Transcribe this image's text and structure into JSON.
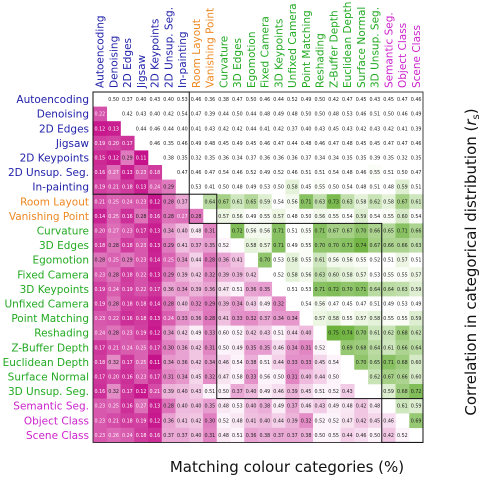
{
  "chart_data": {
    "type": "heatmap",
    "title": "",
    "xlabel": "Matching colour categories (%)",
    "ylabel": "Correlation in categorical distribution (r_s)",
    "ylabel_parts": {
      "main": "Correlation in categorical distribution (",
      "italic": "r",
      "sub": "s",
      "close": ")"
    },
    "tasks": [
      "Autoencoding",
      "Denoising",
      "2D Edges",
      "Jigsaw",
      "2D Keypoints",
      "2D Unsup. Seg.",
      "In-painting",
      "Room Layout",
      "Vanishing Point",
      "Curvature",
      "3D Edges",
      "Egomotion",
      "Fixed Camera",
      "3D Keypoints",
      "Unfixed Camera",
      "Point Matching",
      "Reshading",
      "Z-Buffer Depth",
      "Euclidean Depth",
      "Surface Normal",
      "3D Unsup. Seg.",
      "Semantic Seg.",
      "Object Class",
      "Scene Class"
    ],
    "groups": [
      "2D",
      "2D",
      "2D",
      "2D",
      "2D",
      "2D",
      "2D",
      "Layout",
      "Layout",
      "3D",
      "3D",
      "3D",
      "3D",
      "3D",
      "3D",
      "3D",
      "3D",
      "3D",
      "3D",
      "3D",
      "3D",
      "Semantic",
      "Semantic",
      "Semantic"
    ],
    "group_colors": {
      "2D": "#2222aa",
      "Layout": "#ee8822",
      "3D": "#22aa22",
      "Semantic": "#cc22cc"
    },
    "upper_triangle_metric": "Correlation in categorical distribution (r_s)",
    "lower_triangle_metric": "Matching colour categories (%)",
    "values": [
      [
        null,
        0.5,
        0.37,
        0.4,
        0.43,
        0.4,
        0.53,
        0.46,
        0.36,
        0.38,
        0.47,
        0.5,
        0.46,
        0.44,
        0.52,
        0.49,
        0.5,
        0.42,
        0.47,
        0.45,
        0.43,
        0.45,
        0.47,
        0.46
      ],
      [
        0.22,
        null,
        0.42,
        0.43,
        0.4,
        0.42,
        0.54,
        0.47,
        0.39,
        0.44,
        0.5,
        0.44,
        0.48,
        0.49,
        0.48,
        0.5,
        0.5,
        0.48,
        0.53,
        0.46,
        0.51,
        0.5,
        0.46,
        0.49
      ],
      [
        0.12,
        0.13,
        null,
        0.44,
        0.46,
        0.44,
        0.4,
        0.41,
        0.43,
        0.42,
        0.42,
        0.44,
        0.41,
        0.42,
        0.37,
        0.4,
        0.43,
        0.45,
        0.43,
        0.42,
        0.43,
        0.42,
        0.41,
        0.39
      ],
      [
        0.19,
        0.2,
        0.17,
        null,
        0.46,
        0.35,
        0.46,
        0.49,
        0.48,
        0.45,
        0.49,
        0.45,
        0.46,
        0.47,
        0.44,
        0.48,
        0.46,
        0.47,
        0.48,
        0.45,
        0.45,
        0.47,
        0.47,
        0.46
      ],
      [
        0.15,
        0.12,
        0.29,
        0.11,
        null,
        0.38,
        0.35,
        0.32,
        0.35,
        0.36,
        0.34,
        0.37,
        0.36,
        0.36,
        0.36,
        0.37,
        0.34,
        0.34,
        0.35,
        0.35,
        0.39,
        0.35,
        0.32,
        0.35
      ],
      [
        0.16,
        0.27,
        0.13,
        0.23,
        0.18,
        null,
        0.47,
        0.46,
        0.47,
        0.54,
        0.46,
        0.52,
        0.49,
        0.52,
        0.46,
        0.51,
        0.51,
        0.54,
        0.48,
        0.46,
        0.55,
        0.51,
        0.5,
        0.47
      ],
      [
        0.19,
        0.21,
        0.18,
        0.13,
        0.24,
        0.29,
        null,
        0.53,
        0.41,
        0.5,
        0.48,
        0.49,
        0.53,
        0.5,
        0.58,
        0.45,
        0.55,
        0.5,
        0.54,
        0.48,
        0.51,
        0.48,
        0.59,
        0.51
      ],
      [
        0.21,
        0.25,
        0.24,
        0.23,
        0.12,
        0.28,
        0.37,
        null,
        0.64,
        0.67,
        0.61,
        0.65,
        0.59,
        0.54,
        0.56,
        0.71,
        0.63,
        0.73,
        0.63,
        0.58,
        0.62,
        0.58,
        0.67,
        0.61
      ],
      [
        0.14,
        0.25,
        0.16,
        0.28,
        0.16,
        0.28,
        0.27,
        0.28,
        null,
        0.57,
        0.56,
        0.49,
        0.55,
        0.57,
        0.48,
        0.5,
        0.56,
        0.55,
        0.54,
        0.59,
        0.54,
        0.55,
        0.6,
        0.54
      ],
      [
        0.2,
        0.27,
        0.23,
        0.17,
        0.13,
        0.34,
        0.4,
        0.48,
        0.31,
        null,
        0.72,
        0.56,
        0.56,
        0.71,
        0.51,
        0.55,
        0.71,
        0.67,
        0.67,
        0.7,
        0.66,
        0.65,
        0.71,
        0.66
      ],
      [
        0.18,
        0.28,
        0.18,
        0.23,
        0.13,
        0.29,
        0.41,
        0.37,
        0.35,
        0.52,
        null,
        0.58,
        0.57,
        0.71,
        0.49,
        0.55,
        0.7,
        0.7,
        0.71,
        0.74,
        0.67,
        0.66,
        0.66,
        0.63
      ],
      [
        0.28,
        0.25,
        0.29,
        0.23,
        0.14,
        0.25,
        0.34,
        0.44,
        0.28,
        0.36,
        0.41,
        null,
        0.7,
        0.53,
        0.58,
        0.55,
        0.61,
        0.56,
        0.56,
        0.55,
        0.52,
        0.51,
        0.57,
        0.51
      ],
      [
        0.23,
        0.28,
        0.18,
        0.22,
        0.13,
        0.29,
        0.39,
        0.42,
        0.32,
        0.39,
        0.39,
        0.42,
        null,
        0.52,
        0.58,
        0.56,
        0.63,
        0.6,
        0.58,
        0.57,
        0.53,
        0.55,
        0.55,
        0.57
      ],
      [
        0.19,
        0.24,
        0.19,
        0.22,
        0.17,
        0.36,
        0.34,
        0.39,
        0.36,
        0.47,
        0.51,
        0.36,
        0.35,
        null,
        0.51,
        0.53,
        0.71,
        0.72,
        0.7,
        0.71,
        0.64,
        0.64,
        0.63,
        0.59
      ],
      [
        0.19,
        0.28,
        0.18,
        0.18,
        0.14,
        0.28,
        0.4,
        0.32,
        0.29,
        0.39,
        0.34,
        0.43,
        0.49,
        0.32,
        null,
        0.54,
        0.56,
        0.47,
        0.45,
        0.47,
        0.51,
        0.49,
        0.53,
        0.49
      ],
      [
        0.23,
        0.22,
        0.16,
        0.18,
        0.13,
        0.24,
        0.33,
        0.36,
        0.28,
        0.41,
        0.33,
        0.32,
        0.37,
        0.34,
        0.34,
        null,
        0.57,
        0.58,
        0.55,
        0.57,
        0.58,
        0.55,
        0.55,
        0.59
      ],
      [
        0.24,
        0.28,
        0.23,
        0.19,
        0.12,
        0.34,
        0.42,
        0.49,
        0.33,
        0.6,
        0.52,
        0.42,
        0.43,
        0.51,
        0.44,
        0.4,
        null,
        0.75,
        0.74,
        0.7,
        0.61,
        0.62,
        0.68,
        0.62
      ],
      [
        0.17,
        0.21,
        0.24,
        0.25,
        0.17,
        0.3,
        0.36,
        0.42,
        0.31,
        0.5,
        0.49,
        0.35,
        0.35,
        0.46,
        0.34,
        0.31,
        0.52,
        null,
        0.69,
        0.68,
        0.64,
        0.61,
        0.66,
        0.64
      ],
      [
        0.18,
        0.32,
        0.17,
        0.25,
        0.11,
        0.34,
        0.36,
        0.42,
        0.34,
        0.46,
        0.54,
        0.38,
        0.51,
        0.44,
        0.33,
        0.33,
        0.45,
        0.54,
        null,
        0.7,
        0.65,
        0.71,
        0.68,
        0.6
      ],
      [
        0.17,
        0.2,
        0.16,
        0.23,
        0.17,
        0.31,
        0.34,
        0.45,
        0.32,
        0.47,
        0.58,
        0.33,
        0.56,
        0.5,
        0.31,
        0.4,
        0.44,
        0.5,
        null,
        null,
        0.62,
        0.67,
        0.66,
        0.6
      ],
      [
        0.16,
        0.32,
        0.17,
        0.12,
        0.21,
        0.39,
        0.4,
        0.43,
        0.51,
        0.5,
        0.37,
        0.4,
        0.49,
        0.46,
        0.39,
        0.45,
        0.51,
        0.52,
        0.43,
        null,
        null,
        0.59,
        0.68,
        0.72
      ],
      [
        0.23,
        0.25,
        0.16,
        0.27,
        0.13,
        0.28,
        0.4,
        0.4,
        0.35,
        0.48,
        0.53,
        0.4,
        0.38,
        0.49,
        0.37,
        0.46,
        0.43,
        0.49,
        0.48,
        0.42,
        0.48,
        null,
        0.61,
        0.59
      ],
      [
        0.23,
        0.21,
        0.18,
        0.19,
        0.12,
        0.36,
        0.41,
        0.42,
        0.3,
        0.52,
        0.48,
        0.41,
        0.4,
        0.44,
        0.39,
        0.32,
        0.52,
        0.52,
        0.47,
        0.42,
        0.45,
        0.46,
        null,
        0.69
      ],
      [
        0.23,
        0.26,
        0.24,
        0.18,
        0.16,
        0.37,
        0.37,
        0.4,
        0.31,
        0.48,
        0.51,
        0.36,
        0.38,
        0.37,
        0.37,
        0.38,
        0.5,
        0.55,
        0.44,
        0.46,
        0.5,
        0.42,
        0.52,
        null
      ]
    ],
    "grid": false,
    "group_boxes": true
  }
}
